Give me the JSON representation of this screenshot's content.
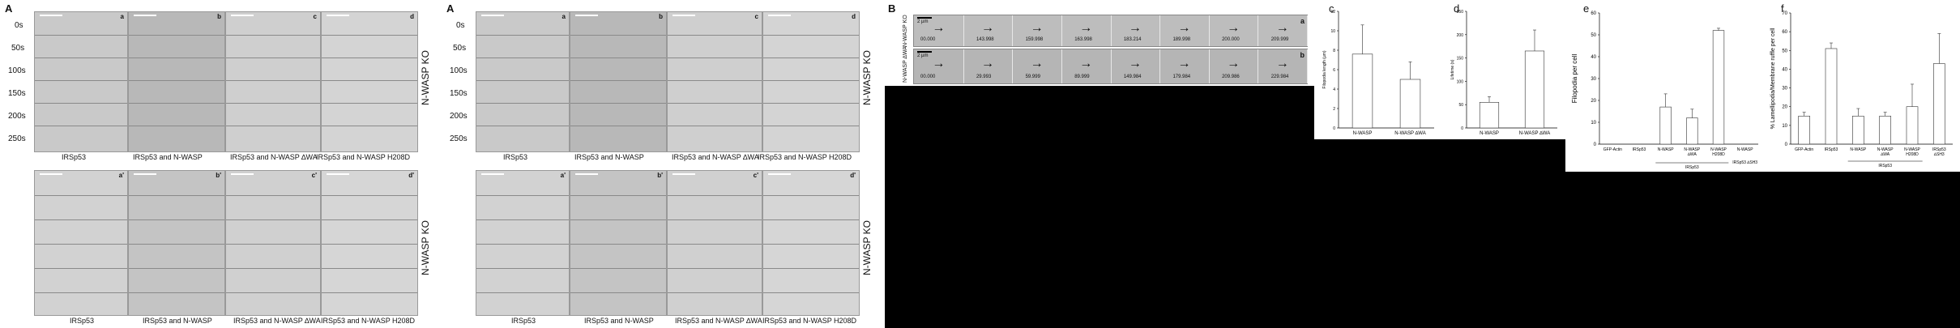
{
  "figA1": {
    "label": "A",
    "times": [
      "0s",
      "50s",
      "100s",
      "150s",
      "200s",
      "250s"
    ],
    "cols_top": [
      "IRSp53",
      "IRSp53 and N-WASP",
      "IRSp53 and N-WASP ∆WA",
      "IRSp53 and N-WASP H208D"
    ],
    "cols_bottom": [
      "IRSp53",
      "IRSp53 and N-WASP",
      "IRSp53 and N-WASP ∆WA",
      "IRSp53 and N-WASP H208D"
    ],
    "tags_top": [
      "a",
      "b",
      "c",
      "d"
    ],
    "tags_bottom": [
      "a'",
      "b'",
      "c'",
      "d'"
    ],
    "side_top": "N-WASP KO",
    "side_bottom": "N-WASP KO"
  },
  "figA2": {
    "label": "A",
    "times": [
      "0s",
      "50s",
      "100s",
      "150s",
      "200s",
      "250s"
    ],
    "cols_top": [
      "IRSp53",
      "IRSp53 and N-WASP",
      "IRSp53 and N-WASP ∆WA",
      "IRSp53 and N-WASP H208D"
    ],
    "cols_bottom": [
      "IRSp53",
      "IRSp53 and N-WASP",
      "IRSp53 and N-WASP ∆WA",
      "IRSp53 and N-WASP H208D"
    ],
    "tags_top": [
      "a",
      "b",
      "c",
      "d"
    ],
    "tags_bottom": [
      "a'",
      "b'",
      "c'",
      "d'"
    ],
    "side_top": "N-WASP KO",
    "side_bottom": "N-WASP KO"
  },
  "figB": {
    "label": "B",
    "row_a_label": "N-WASP KO",
    "row_b_label": "N-WASP ∆WA",
    "row_a_tag": "a",
    "row_b_tag": "b",
    "scale": "2 µm",
    "row_a_times": [
      "00.000",
      "143.998",
      "159.998",
      "163.998",
      "183.214",
      "189.998",
      "200.000",
      "209.999"
    ],
    "row_b_times": [
      "00.000",
      "29.993",
      "59.999",
      "89.999",
      "149.984",
      "179.984",
      "209.986",
      "229.984"
    ]
  },
  "figC": {
    "label": "c",
    "chart_data": {
      "type": "bar",
      "categories": [
        "N-WASP",
        "N-WASP ∆WA"
      ],
      "values": [
        7.6,
        5.0
      ],
      "errors": [
        3.0,
        1.8
      ],
      "ylabel": "Filopodia length (µm)",
      "ylim": [
        0,
        12
      ],
      "yticks": [
        0,
        2,
        4,
        6,
        8,
        10,
        12
      ]
    }
  },
  "figD": {
    "label": "d",
    "chart_data": {
      "type": "bar",
      "categories": [
        "N-WASP",
        "N-WASP ∆WA"
      ],
      "values": [
        55,
        165
      ],
      "errors": [
        12,
        45
      ],
      "ylabel": "Lifetime (s)",
      "ylim": [
        0,
        250
      ],
      "yticks": [
        0,
        50,
        100,
        150,
        200,
        250
      ]
    }
  },
  "figE": {
    "label": "e",
    "chart_data": {
      "type": "bar",
      "categories": [
        "GFP-Actin",
        "IRSp53",
        "N-WASP",
        "N-WASP ∆WA",
        "N-WASP H208D",
        "N-WASP"
      ],
      "values": [
        0,
        0,
        17,
        12,
        52,
        0
      ],
      "errors": [
        0,
        0,
        6,
        4,
        1,
        0
      ],
      "group_label_1": "IRSp53",
      "group_label_2": "IRSp53 ∆SH3",
      "ylabel": "Filopodia per cell",
      "ylim": [
        0,
        60
      ],
      "yticks": [
        0,
        10,
        20,
        30,
        40,
        50,
        60
      ]
    }
  },
  "figF": {
    "label": "f",
    "chart_data": {
      "type": "bar",
      "categories": [
        "GFP-Actin",
        "IRSp53",
        "N-WASP",
        "N-WASP ∆WA",
        "N-WASP H208D",
        "IRSp53 ∆SH3"
      ],
      "values": [
        15,
        51,
        15,
        15,
        20,
        43
      ],
      "errors": [
        2,
        3,
        4,
        2,
        12,
        16
      ],
      "group_label": "IRSp53",
      "ylabel": "% Lamellipodia/Membrane ruffle per cell",
      "ylim": [
        0,
        70
      ],
      "yticks": [
        0,
        10,
        20,
        30,
        40,
        50,
        60,
        70
      ]
    }
  }
}
